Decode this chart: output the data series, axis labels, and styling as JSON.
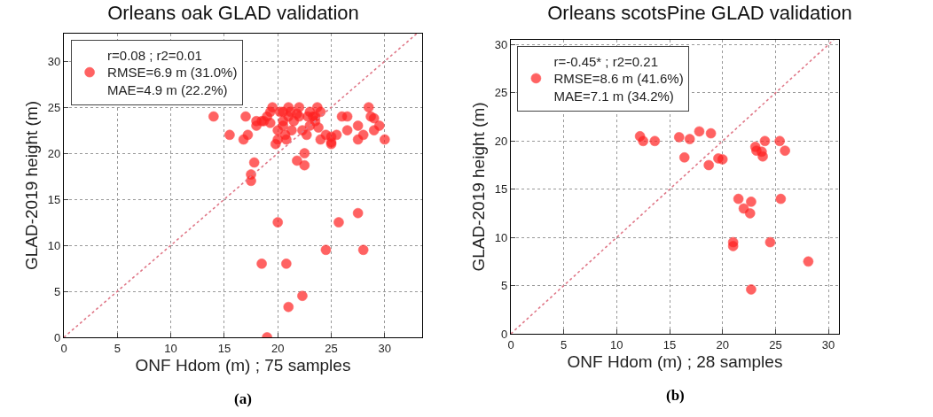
{
  "chart_data": [
    {
      "type": "scatter",
      "title": "Orleans oak GLAD validation",
      "xlabel": "ONF Hdom (m) ; 75 samples",
      "ylabel": "GLAD-2019 height (m)",
      "annotations": [
        "(a)"
      ],
      "xlim": [
        0,
        33.5
      ],
      "ylim": [
        0,
        33
      ],
      "xticks": [
        0,
        5,
        10,
        15,
        20,
        25,
        30
      ],
      "yticks": [
        0,
        5,
        10,
        15,
        20,
        25,
        30
      ],
      "grid": true,
      "legend": "top left",
      "marker": "circle",
      "series": [
        {
          "name": "r=0.08 ; r2=0.01\nRMSE=6.9 m (31.0%)\nMAE=4.9 m (22.2%)",
          "color": "#ff2020",
          "x": [
            14,
            15.5,
            16.8,
            17,
            17.2,
            17.5,
            17.5,
            17.8,
            18,
            18.5,
            18.7,
            19,
            19.3,
            19.8,
            20,
            20,
            20.2,
            20.5,
            20.5,
            20.7,
            20.8,
            21,
            21.2,
            21.5,
            21.8,
            22,
            22.3,
            22.5,
            22.5,
            22.7,
            23,
            23,
            23.3,
            23.5,
            23.7,
            23.8,
            24,
            24.5,
            25,
            25,
            25.5,
            26,
            26.5,
            27.5,
            27.5,
            28,
            28.5,
            28.7,
            29,
            29.5,
            30,
            19.5,
            21,
            22,
            23.5,
            24,
            20.5,
            21.3,
            22.8,
            26.5,
            29,
            19.3,
            21.8,
            25,
            18,
            20,
            18.5,
            20.8,
            21,
            22.3,
            19,
            24.5,
            25.7,
            27.5,
            28
          ],
          "values": [
            24,
            22,
            21.5,
            24,
            22,
            17,
            17.7,
            19,
            23,
            23.5,
            23.5,
            24,
            24.5,
            21,
            22.5,
            21.5,
            24.5,
            24.5,
            23.5,
            22,
            21.5,
            24,
            24.5,
            23.5,
            19.2,
            24,
            22.5,
            20,
            18.7,
            22,
            24.5,
            23,
            24,
            24,
            25,
            22.8,
            21.5,
            22,
            21.8,
            21.2,
            22,
            24,
            24,
            23,
            21.5,
            22,
            25,
            24,
            22.5,
            23,
            21.5,
            25,
            25,
            25,
            23.5,
            24.5,
            23,
            22.5,
            24,
            22.5,
            23.8,
            23.3,
            24.3,
            21,
            23.5,
            12.5,
            8,
            8,
            3.3,
            4.5,
            0,
            9.5,
            12.5,
            13.5,
            9.5
          ]
        },
        {
          "type": "line",
          "x": [
            0,
            33
          ],
          "values": [
            0,
            33
          ],
          "color": "#e07888",
          "line_style": "dotted",
          "marker": "none"
        }
      ]
    },
    {
      "type": "scatter",
      "title": "Orleans scotsPine GLAD validation",
      "xlabel": "ONF Hdom (m) ; 28 samples",
      "ylabel": "GLAD-2019 height (m)",
      "annotations": [
        "(b)"
      ],
      "xlim": [
        0,
        31
      ],
      "ylim": [
        0,
        30.5
      ],
      "xticks": [
        0,
        5,
        10,
        15,
        20,
        25,
        30
      ],
      "yticks": [
        0,
        5,
        10,
        15,
        20,
        25,
        30
      ],
      "grid": true,
      "legend": "top left",
      "marker": "circle",
      "series": [
        {
          "name": "r=-0.45* ; r2=0.21\nRMSE=8.6 m (41.6%)\nMAE=7.1 m (34.2%)",
          "color": "#ff2020",
          "x": [
            12.2,
            12.5,
            13.6,
            15.9,
            16.4,
            16.9,
            17.8,
            18.7,
            18.9,
            19.6,
            20,
            21.5,
            22,
            22.7,
            22.6,
            23.1,
            23.2,
            23.7,
            23.8,
            24,
            24.5,
            21,
            21,
            22.7,
            25.4,
            25.5,
            25.9,
            28.1
          ],
          "values": [
            20.5,
            20,
            20,
            20.4,
            18.3,
            20.2,
            21,
            17.5,
            20.8,
            18.2,
            18.1,
            14,
            13,
            13.7,
            12.5,
            19.4,
            19,
            18.9,
            18.4,
            20,
            9.5,
            9.5,
            9.1,
            4.6,
            20,
            14,
            19,
            7.5
          ]
        },
        {
          "type": "line",
          "x": [
            0,
            30.5
          ],
          "values": [
            0,
            30.5
          ],
          "color": "#e07888",
          "line_style": "dotted",
          "marker": "none"
        }
      ]
    }
  ]
}
